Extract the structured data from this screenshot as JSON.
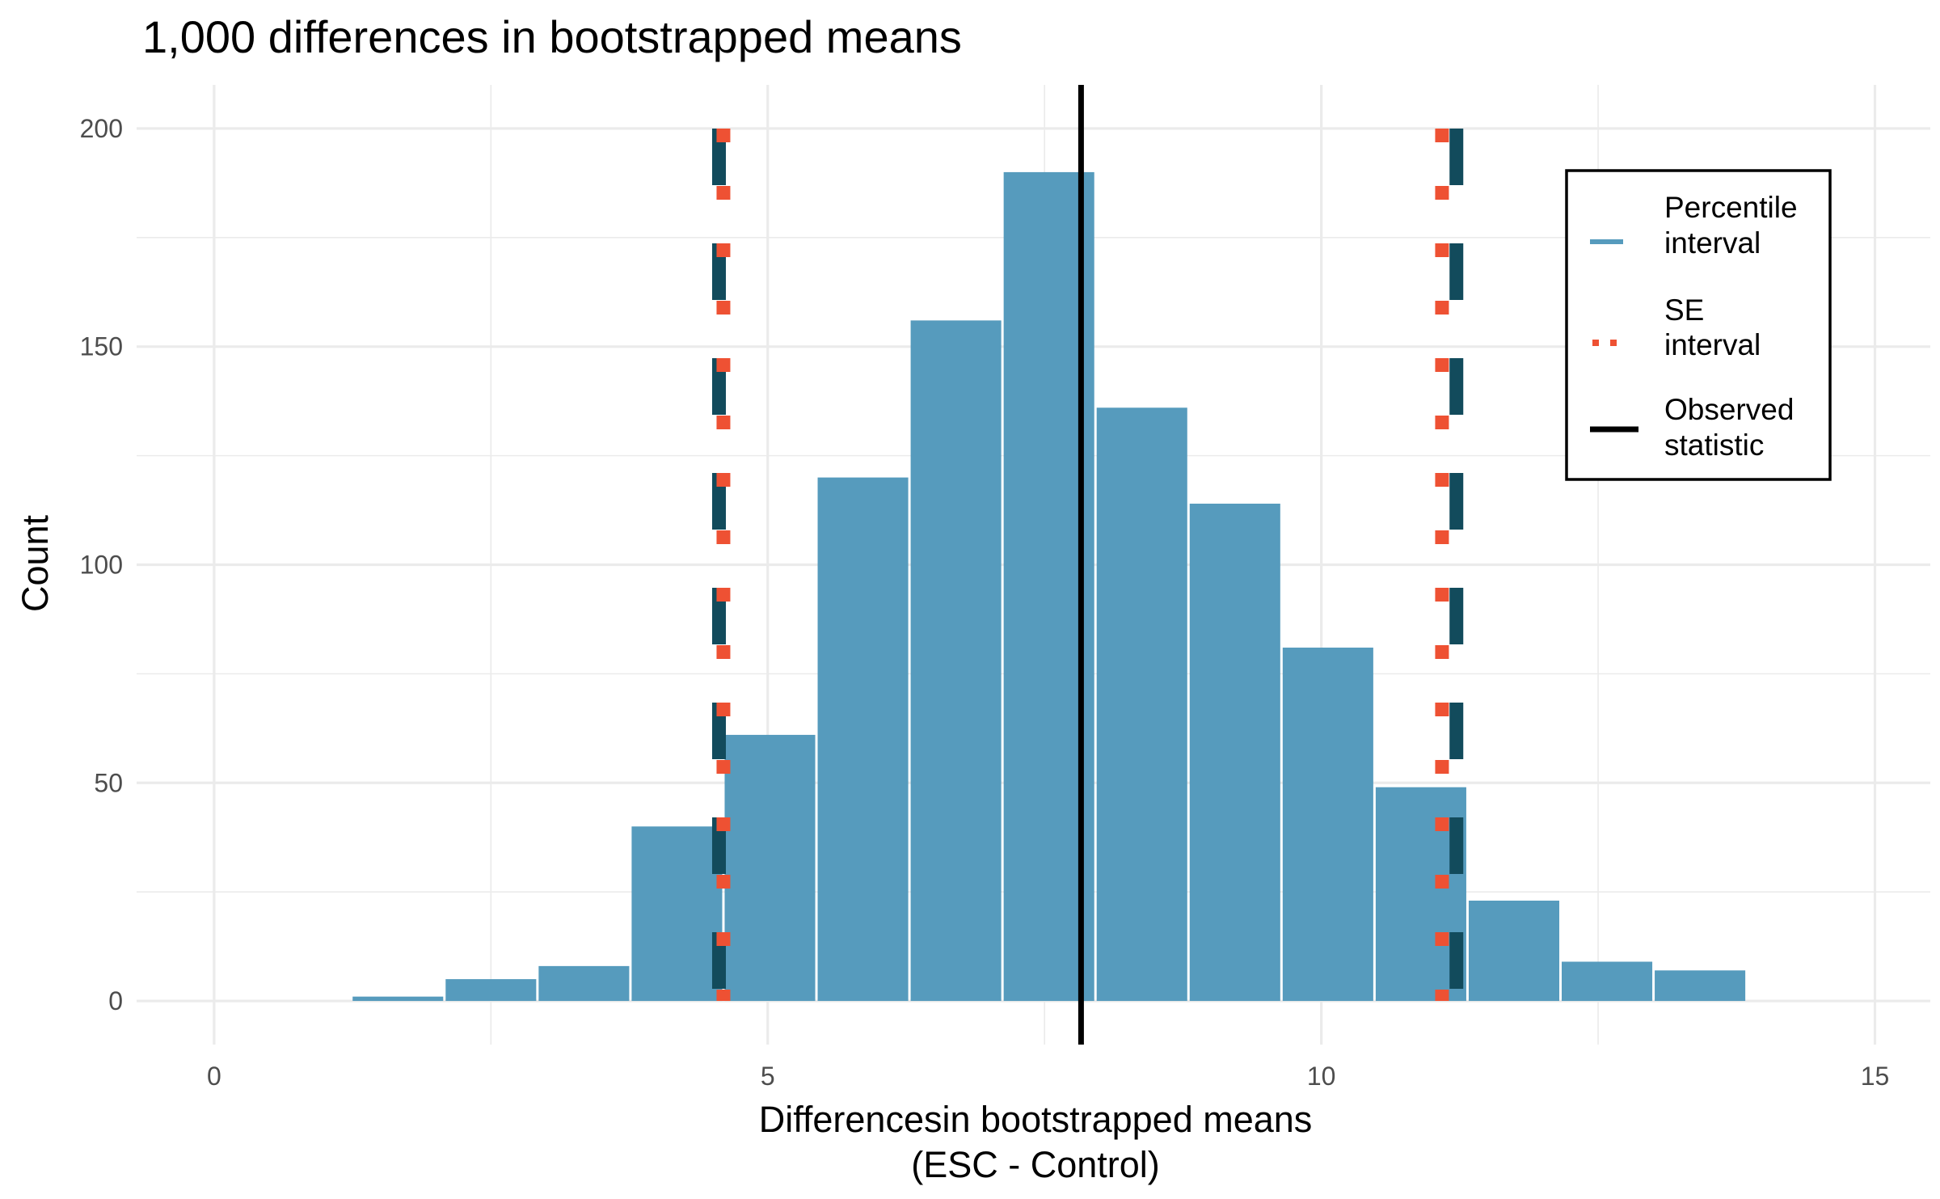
{
  "chart_data": {
    "type": "bar",
    "title": "1,000 differences in bootstrapped means",
    "xlabel": [
      "Differencesin bootstrapped means",
      "(ESC - Control)"
    ],
    "ylabel": "Count",
    "xlim": [
      -0.7,
      15.5
    ],
    "ylim": [
      -10,
      210
    ],
    "x_ticks": [
      {
        "value": 0,
        "label": "0"
      },
      {
        "value": 5,
        "label": "5"
      },
      {
        "value": 10,
        "label": "10"
      },
      {
        "value": 15,
        "label": "15"
      }
    ],
    "y_ticks": [
      {
        "value": 0,
        "label": "0"
      },
      {
        "value": 50,
        "label": "50"
      },
      {
        "value": 100,
        "label": "100"
      },
      {
        "value": 150,
        "label": "150"
      },
      {
        "value": 200,
        "label": "200"
      }
    ],
    "grid": true,
    "bins": [
      {
        "x0": 0.4,
        "x1": 1.24,
        "count": 0
      },
      {
        "x0": 1.24,
        "x1": 2.08,
        "count": 1
      },
      {
        "x0": 2.08,
        "x1": 2.92,
        "count": 5
      },
      {
        "x0": 2.92,
        "x1": 3.76,
        "count": 8
      },
      {
        "x0": 3.76,
        "x1": 4.6,
        "count": 40
      },
      {
        "x0": 4.6,
        "x1": 5.44,
        "count": 61
      },
      {
        "x0": 5.44,
        "x1": 6.28,
        "count": 120
      },
      {
        "x0": 6.28,
        "x1": 7.12,
        "count": 156
      },
      {
        "x0": 7.12,
        "x1": 7.96,
        "count": 190
      },
      {
        "x0": 7.96,
        "x1": 8.8,
        "count": 136
      },
      {
        "x0": 8.8,
        "x1": 9.64,
        "count": 114
      },
      {
        "x0": 9.64,
        "x1": 10.48,
        "count": 81
      },
      {
        "x0": 10.48,
        "x1": 11.32,
        "count": 49
      },
      {
        "x0": 11.32,
        "x1": 12.16,
        "count": 23
      },
      {
        "x0": 12.16,
        "x1": 13.0,
        "count": 9
      },
      {
        "x0": 13.0,
        "x1": 13.84,
        "count": 7
      }
    ],
    "observed_statistic": 7.83,
    "percentile_interval": [
      4.56,
      11.22
    ],
    "se_interval": [
      4.6,
      11.09
    ],
    "line_ymax": 200,
    "legend": {
      "position": "top-right",
      "entries": [
        {
          "key": "percentile",
          "lines": [
            "Percentile",
            "interval"
          ]
        },
        {
          "key": "se",
          "lines": [
            "SE",
            "interval"
          ]
        },
        {
          "key": "observed",
          "lines": [
            "Observed",
            "statistic"
          ]
        }
      ]
    },
    "colors": {
      "bar": "#569bbd",
      "percentile_line": "#124b5c",
      "legend_percentile": "#569bbd",
      "se_line": "#ee5133",
      "observed_line": "#000000",
      "grid": "#ebebeb",
      "tick_text": "#4d4d4d"
    }
  }
}
